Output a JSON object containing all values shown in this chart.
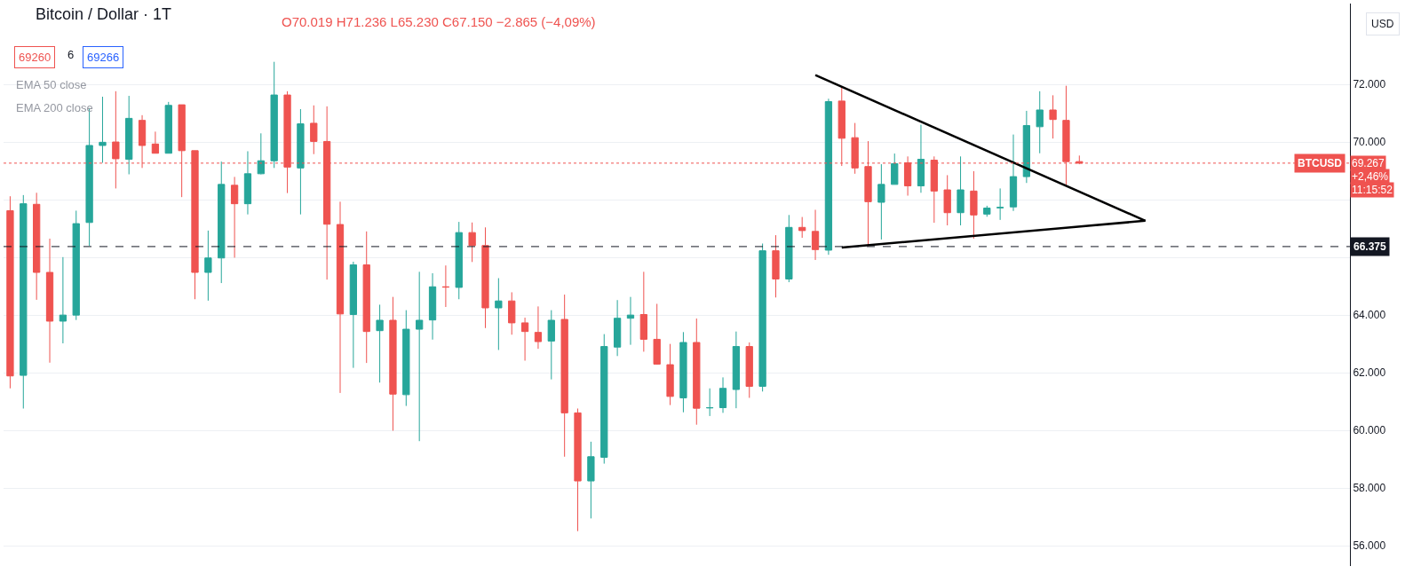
{
  "chart_data": {
    "type": "candlestick",
    "title": "Bitcoin / Dollar · 1T",
    "annotations": [
      "O70.019 H71.236 L65.230 C67.150 −2.865 (−4,09%)",
      "69260",
      "6",
      "69266",
      "EMA 50 close",
      "EMA 200 close",
      "USD",
      "69.267",
      "+2,46%",
      "11:15:52"
    ],
    "categories": [
      null,
      null,
      null,
      null,
      null,
      null,
      null,
      null,
      null,
      null,
      null,
      null,
      null,
      null,
      null,
      null,
      null,
      null,
      null,
      null,
      null,
      null,
      null,
      null,
      null,
      null,
      null,
      null,
      null,
      null,
      null,
      null,
      null,
      null,
      null,
      null,
      null,
      null,
      null,
      null,
      null,
      null,
      null,
      null,
      null,
      null,
      null,
      null,
      null,
      null,
      null,
      null,
      null,
      null,
      null,
      null,
      null,
      null,
      null,
      null,
      null,
      null,
      null,
      null,
      null,
      null,
      null,
      null,
      null,
      null,
      null,
      null,
      null,
      null,
      null,
      null,
      null,
      null,
      null,
      null,
      null,
      null,
      null,
      null,
      null,
      null,
      null,
      null,
      null,
      null,
      null,
      null,
      null,
      null,
      null,
      null,
      null,
      null,
      null,
      null,
      null,
      null
    ],
    "ohlc": [
      [
        67620,
        68120,
        61460,
        61890
      ],
      [
        61910,
        68160,
        60760,
        67860
      ],
      [
        67840,
        68240,
        64530,
        65480
      ],
      [
        65480,
        66650,
        62350,
        63790
      ],
      [
        63790,
        66010,
        63020,
        64000
      ],
      [
        64000,
        67620,
        63830,
        67170
      ],
      [
        67210,
        71180,
        66400,
        69880
      ],
      [
        69880,
        71570,
        69280,
        69990
      ],
      [
        70000,
        71760,
        68390,
        69420
      ],
      [
        69400,
        71600,
        68880,
        70820
      ],
      [
        70750,
        70930,
        69100,
        69880
      ],
      [
        69930,
        70360,
        69610,
        69610
      ],
      [
        69610,
        71390,
        69610,
        71270
      ],
      [
        71290,
        71290,
        68090,
        69700
      ],
      [
        69700,
        69700,
        64550,
        65480
      ],
      [
        65480,
        66930,
        64500,
        65980
      ],
      [
        65980,
        69320,
        65110,
        68530
      ],
      [
        68500,
        68790,
        65990,
        67860
      ],
      [
        67860,
        69680,
        67490,
        68900
      ],
      [
        68900,
        70300,
        68880,
        69350
      ],
      [
        69350,
        72780,
        69100,
        71630
      ],
      [
        71630,
        71760,
        68230,
        69130
      ],
      [
        69100,
        71140,
        67490,
        70630
      ],
      [
        70650,
        71270,
        69580,
        70020
      ],
      [
        70019,
        71236,
        65230,
        67150
      ],
      [
        67140,
        67930,
        61300,
        64040
      ],
      [
        64020,
        65850,
        62170,
        65740
      ],
      [
        65740,
        66900,
        62340,
        63430
      ],
      [
        63460,
        64360,
        61660,
        63820
      ],
      [
        63820,
        64630,
        59990,
        61260
      ],
      [
        61240,
        64170,
        60850,
        63510
      ],
      [
        63510,
        65500,
        59630,
        63820
      ],
      [
        63830,
        65450,
        63150,
        64980
      ],
      [
        64980,
        65720,
        64280,
        64970
      ],
      [
        64960,
        67230,
        64550,
        66860
      ],
      [
        66860,
        67210,
        65840,
        66410
      ],
      [
        66410,
        67040,
        63550,
        64250
      ],
      [
        64250,
        65280,
        62790,
        64490
      ],
      [
        64490,
        64790,
        63320,
        63730
      ],
      [
        63730,
        63910,
        62420,
        63430
      ],
      [
        63400,
        64300,
        62830,
        63080
      ],
      [
        63100,
        64170,
        61770,
        63820
      ],
      [
        63850,
        64710,
        59090,
        60610
      ],
      [
        60610,
        60760,
        56510,
        58250
      ],
      [
        58250,
        59610,
        56950,
        59090
      ],
      [
        59070,
        63340,
        58850,
        62910
      ],
      [
        62890,
        64520,
        62580,
        63890
      ],
      [
        63890,
        64630,
        62970,
        64000
      ],
      [
        64020,
        65500,
        62730,
        63160
      ],
      [
        63160,
        64390,
        62280,
        62300
      ],
      [
        62280,
        63000,
        60880,
        61180
      ],
      [
        61130,
        63410,
        60630,
        63050
      ],
      [
        63050,
        63880,
        60200,
        60770
      ],
      [
        60780,
        61460,
        60500,
        60790
      ],
      [
        60790,
        61840,
        60610,
        61460
      ],
      [
        61420,
        63430,
        60770,
        62910
      ],
      [
        62910,
        63050,
        61130,
        61530
      ],
      [
        61530,
        66480,
        61350,
        66230
      ],
      [
        66230,
        66770,
        64610,
        65250
      ],
      [
        65250,
        67470,
        65140,
        67040
      ],
      [
        67040,
        67400,
        66680,
        66930
      ],
      [
        66900,
        67650,
        65910,
        66270
      ],
      [
        66250,
        71500,
        66090,
        71400
      ],
      [
        71420,
        71930,
        69170,
        70130
      ],
      [
        70150,
        70660,
        68900,
        69100
      ],
      [
        69150,
        70030,
        66380,
        67930
      ],
      [
        67910,
        69230,
        66620,
        68530
      ],
      [
        68530,
        69600,
        68530,
        69250
      ],
      [
        69280,
        69500,
        68140,
        68480
      ],
      [
        68480,
        70600,
        68240,
        69400
      ],
      [
        69370,
        69500,
        67200,
        68300
      ],
      [
        68340,
        68850,
        67110,
        67550
      ],
      [
        67550,
        69500,
        67110,
        68340
      ],
      [
        68300,
        68990,
        66650,
        67470
      ],
      [
        67500,
        67790,
        67410,
        67710
      ],
      [
        67720,
        68390,
        67300,
        67730
      ],
      [
        67750,
        70260,
        67610,
        68800
      ],
      [
        68800,
        71080,
        68580,
        70570
      ],
      [
        70530,
        71760,
        69610,
        71110
      ],
      [
        71110,
        71620,
        70120,
        70780
      ],
      [
        70750,
        71950,
        68500,
        69320
      ],
      [
        69320,
        69530,
        69230,
        69267
      ],
      null,
      null,
      null,
      null,
      null,
      null,
      null,
      null,
      null,
      null,
      null,
      null,
      null,
      null,
      null,
      null,
      null,
      null,
      null,
      null
    ],
    "colors": [
      "#ef5350",
      "#26a69a",
      "#ef5350",
      "#ef5350",
      "#26a69a",
      "#26a69a",
      "#26a69a",
      "#26a69a",
      "#ef5350",
      "#26a69a",
      "#ef5350",
      "#ef5350",
      "#26a69a",
      "#ef5350",
      "#ef5350",
      "#26a69a",
      "#26a69a",
      "#ef5350",
      "#26a69a",
      "#26a69a",
      "#26a69a",
      "#ef5350",
      "#26a69a",
      "#ef5350",
      "#ef5350",
      "#ef5350",
      "#26a69a",
      "#ef5350",
      "#26a69a",
      "#ef5350",
      "#26a69a",
      "#26a69a",
      "#26a69a",
      "#ef5350",
      "#26a69a",
      "#ef5350",
      "#ef5350",
      "#26a69a",
      "#ef5350",
      "#ef5350",
      "#ef5350",
      "#26a69a",
      "#ef5350",
      "#ef5350",
      "#26a69a",
      "#26a69a",
      "#26a69a",
      "#26a69a",
      "#ef5350",
      "#ef5350",
      "#ef5350",
      "#26a69a",
      "#ef5350",
      "#26a69a",
      "#26a69a",
      "#26a69a",
      "#ef5350",
      "#26a69a",
      "#ef5350",
      "#26a69a",
      "#ef5350",
      "#ef5350",
      "#26a69a",
      "#ef5350",
      "#ef5350",
      "#ef5350",
      "#26a69a",
      "#26a69a",
      "#ef5350",
      "#26a69a",
      "#ef5350",
      "#ef5350",
      "#26a69a",
      "#ef5350",
      "#26a69a",
      "#26a69a",
      "#26a69a",
      "#26a69a",
      "#26a69a",
      "#ef5350",
      "#ef5350",
      "#ef5350",
      null,
      null,
      null,
      null,
      null,
      null,
      null,
      null,
      null,
      null,
      null,
      null,
      null,
      null,
      null,
      null,
      null,
      null,
      null,
      null
    ],
    "series": [
      {
        "type": "line",
        "color": "#000000",
        "values": [
          null,
          null,
          null,
          null,
          null,
          null,
          null,
          null,
          null,
          null,
          null,
          null,
          null,
          null,
          null,
          null,
          null,
          null,
          null,
          null,
          null,
          null,
          null,
          null,
          null,
          null,
          null,
          null,
          null,
          null,
          null,
          null,
          null,
          null,
          null,
          null,
          null,
          null,
          null,
          null,
          null,
          null,
          null,
          null,
          null,
          null,
          null,
          null,
          null,
          null,
          null,
          null,
          null,
          null,
          null,
          null,
          null,
          null,
          null,
          null,
          null,
          72320,
          null,
          null,
          null,
          null,
          null,
          null,
          null,
          null,
          null,
          null,
          null,
          null,
          null,
          null,
          null,
          null,
          null,
          null,
          null,
          null,
          null,
          null,
          null,
          null,
          67270,
          null,
          null,
          null,
          null,
          null,
          null,
          null,
          null,
          null,
          null,
          null,
          null,
          null,
          null,
          null
        ]
      },
      {
        "type": "line",
        "color": "#000000",
        "values": [
          null,
          null,
          null,
          null,
          null,
          null,
          null,
          null,
          null,
          null,
          null,
          null,
          null,
          null,
          null,
          null,
          null,
          null,
          null,
          null,
          null,
          null,
          null,
          null,
          null,
          null,
          null,
          null,
          null,
          null,
          null,
          null,
          null,
          null,
          null,
          null,
          null,
          null,
          null,
          null,
          null,
          null,
          null,
          null,
          null,
          null,
          null,
          null,
          null,
          null,
          null,
          null,
          null,
          null,
          null,
          null,
          null,
          null,
          null,
          null,
          null,
          null,
          null,
          66340,
          null,
          null,
          null,
          null,
          null,
          null,
          null,
          null,
          null,
          null,
          null,
          null,
          null,
          null,
          null,
          null,
          null,
          null,
          null,
          null,
          null,
          null,
          67270,
          null,
          null,
          null,
          null,
          null,
          null,
          null,
          null,
          null,
          null,
          null,
          null,
          null,
          null,
          null
        ]
      }
    ],
    "ref_lines": [
      {
        "axis": "y",
        "value": 69267,
        "label": "BTCUSD",
        "color": "#ef5350",
        "line_style": "dotted"
      },
      {
        "axis": "y",
        "value": 66375,
        "label": "66.375",
        "color": "#131722",
        "line_style": "dashed"
      }
    ],
    "ylim": [
      55300,
      74800
    ],
    "yticks": [
      {
        "value": 56000,
        "label": "56.000"
      },
      {
        "value": 58000,
        "label": "58.000"
      },
      {
        "value": 60000,
        "label": "60.000"
      },
      {
        "value": 62000,
        "label": "62.000"
      },
      {
        "value": 64000,
        "label": "64.000"
      },
      {
        "value": 66000,
        "label": null
      },
      {
        "value": 68000,
        "label": null
      },
      {
        "value": 70000,
        "label": "70.000"
      },
      {
        "value": 72000,
        "label": "72.000"
      }
    ],
    "tick_labels": "y",
    "grid": "y"
  }
}
